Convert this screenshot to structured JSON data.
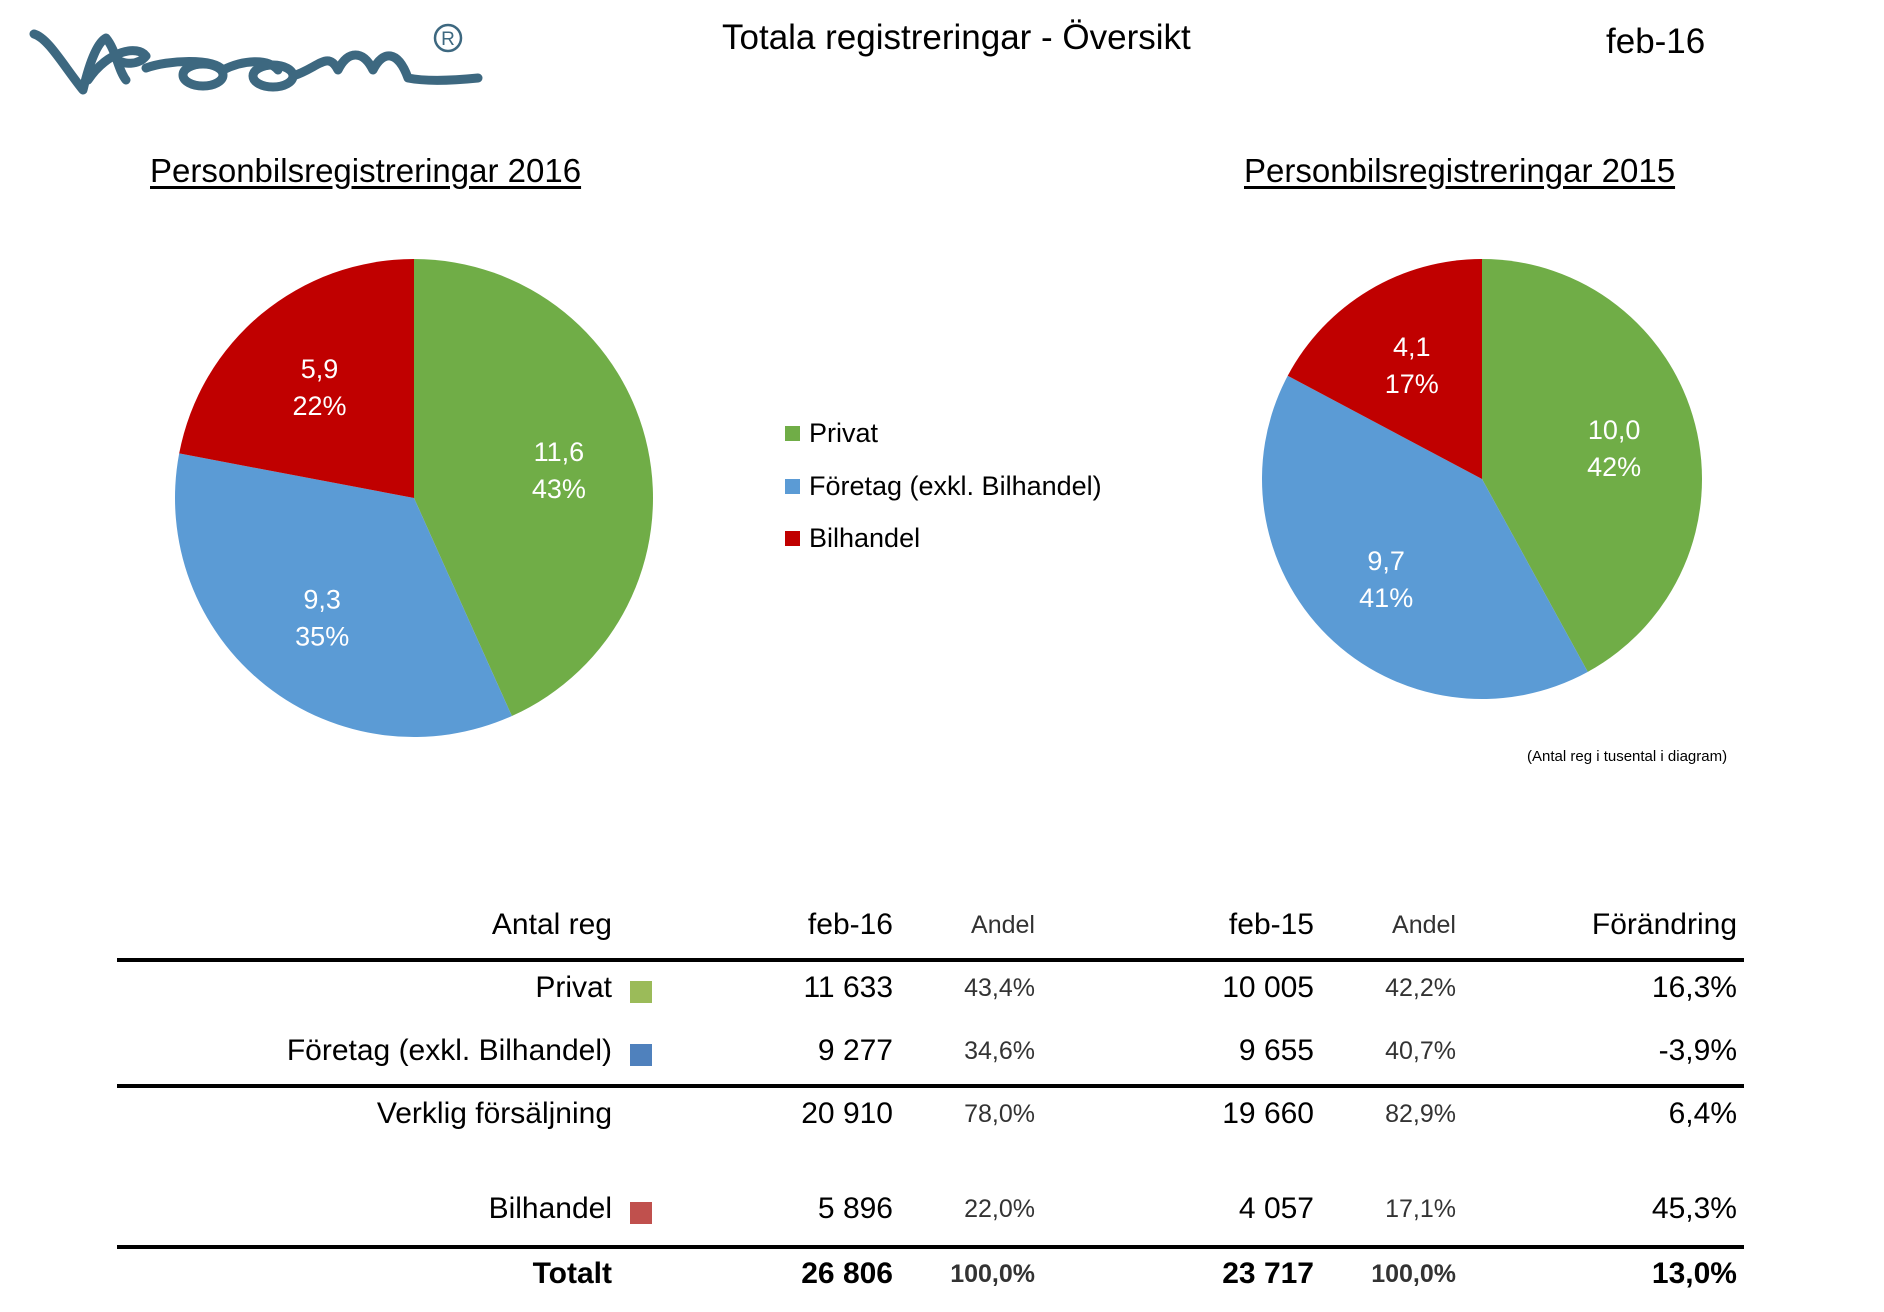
{
  "header": {
    "logo_text": "Vroom",
    "title": "Totala registreringar  -  Översikt",
    "date": "feb-16"
  },
  "colors": {
    "privat": "#70AD47",
    "foretag": "#5B9BD5",
    "bilhandel": "#C00000",
    "logo": "#3D6880",
    "table_privat": "#9BBB59",
    "table_foretag": "#4F81BD",
    "table_bilhandel": "#C0504D"
  },
  "legend": [
    {
      "label": "Privat",
      "color": "#70AD47"
    },
    {
      "label": "Företag (exkl. Bilhandel)",
      "color": "#5B9BD5"
    },
    {
      "label": "Bilhandel",
      "color": "#C00000"
    }
  ],
  "note": "(Antal reg i tusental i diagram)",
  "chart_data": [
    {
      "type": "pie",
      "title": "Personbilsregistreringar 2016",
      "categories": [
        "Privat",
        "Företag (exkl. Bilhandel)",
        "Bilhandel"
      ],
      "values": [
        11.6,
        9.3,
        5.9
      ],
      "value_labels": [
        "11,6",
        "9,3",
        "5,9"
      ],
      "percent_labels": [
        "43%",
        "35%",
        "22%"
      ],
      "colors": [
        "#70AD47",
        "#5B9BD5",
        "#C00000"
      ],
      "start": "12 o'clock, clockwise",
      "legend": "right"
    },
    {
      "type": "pie",
      "title": "Personbilsregistreringar 2015",
      "categories": [
        "Privat",
        "Företag (exkl. Bilhandel)",
        "Bilhandel"
      ],
      "values": [
        10.0,
        9.7,
        4.1
      ],
      "value_labels": [
        "10,0",
        "9,7",
        "4,1"
      ],
      "percent_labels": [
        "42%",
        "41%",
        "17%"
      ],
      "colors": [
        "#70AD47",
        "#5B9BD5",
        "#C00000"
      ],
      "start": "12 o'clock, clockwise",
      "legend": "left"
    }
  ],
  "table": {
    "columns": [
      "Antal reg",
      "feb-16",
      "Andel",
      "feb-15",
      "Andel",
      "Förändring"
    ],
    "rows": [
      {
        "label": "Privat",
        "swatch": "#9BBB59",
        "feb16": "11 633",
        "andel16": "43,4%",
        "feb15": "10 005",
        "andel15": "42,2%",
        "change": "16,3%",
        "bold": false
      },
      {
        "label": "Företag (exkl. Bilhandel)",
        "swatch": "#4F81BD",
        "feb16": "9 277",
        "andel16": "34,6%",
        "feb15": "9 655",
        "andel15": "40,7%",
        "change": "-3,9%",
        "bold": false
      },
      {
        "label": "Verklig försäljning",
        "swatch": null,
        "feb16": "20 910",
        "andel16": "78,0%",
        "feb15": "19 660",
        "andel15": "82,9%",
        "change": "6,4%",
        "bold": false
      },
      {
        "label": "Bilhandel",
        "swatch": "#C0504D",
        "feb16": "5 896",
        "andel16": "22,0%",
        "feb15": "4 057",
        "andel15": "17,1%",
        "change": "45,3%",
        "bold": false
      },
      {
        "label": "Totalt",
        "swatch": null,
        "feb16": "26 806",
        "andel16": "100,0%",
        "feb15": "23 717",
        "andel15": "100,0%",
        "change": "13,0%",
        "bold": true
      }
    ]
  }
}
